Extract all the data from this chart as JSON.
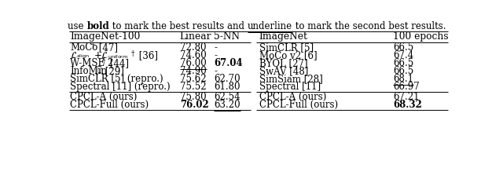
{
  "bg_color": "#ffffff",
  "text_color": "#000000",
  "line_color": "#000000",
  "font_size": 8.5,
  "caption_parts": [
    {
      "text": "use ",
      "bold": false,
      "underline": false
    },
    {
      "text": "bold",
      "bold": true,
      "underline": false
    },
    {
      "text": " to mark the best results and ",
      "bold": false,
      "underline": false
    },
    {
      "text": "underline",
      "bold": false,
      "underline": true
    },
    {
      "text": " to mark the second best results.",
      "bold": false,
      "underline": false
    }
  ],
  "left_header": [
    "ImageNet-100",
    "Linear",
    "5-NN"
  ],
  "right_header": [
    "ImageNet",
    "100 epochs"
  ],
  "left_rows": [
    {
      "method": "MoCo† [47]",
      "linear": "72.80",
      "nn": "-",
      "lb": false,
      "lu": false,
      "nb": false,
      "nu": false
    },
    {
      "method": "Lalign_Luniform",
      "linear": "74.60",
      "nn": "-",
      "lb": false,
      "lu": false,
      "nb": false,
      "nu": false
    },
    {
      "method": "W-MSE 2† [44]",
      "linear": "76.00",
      "nn": "67.04",
      "lb": false,
      "lu": true,
      "nb": true,
      "nu": false
    },
    {
      "method": "InfoMin★ [29]",
      "linear": "74.90",
      "nn": "-",
      "lb": false,
      "lu": false,
      "nb": false,
      "nu": false
    },
    {
      "method": "SimCLR [5] (repro.)",
      "linear": "75.62",
      "nn": "62.70",
      "lb": false,
      "lu": false,
      "nb": false,
      "nu": false
    },
    {
      "method": "Spectral [11] (repro.)",
      "linear": "75.52",
      "nn": "61.80",
      "lb": false,
      "lu": false,
      "nb": false,
      "nu": false
    }
  ],
  "left_ours": [
    {
      "method": "CPCL-A (ours)",
      "linear": "75.80",
      "nn": "62.54",
      "lb": false,
      "lu": false,
      "nb": false,
      "nu": false
    },
    {
      "method": "CPCL-Full (ours)",
      "linear": "76.02",
      "nn": "63.20",
      "lb": true,
      "lu": false,
      "nb": false,
      "nu": true
    }
  ],
  "right_rows": [
    {
      "method": "SimCLR [5]",
      "val": "66.5",
      "bold": false,
      "underline": false
    },
    {
      "method": "MoCo v2 [6]",
      "val": "67.4",
      "bold": false,
      "underline": false
    },
    {
      "method": "BYOL [27]",
      "val": "66.5",
      "bold": false,
      "underline": false
    },
    {
      "method": "SwAV [48]",
      "val": "66.5",
      "bold": false,
      "underline": false
    },
    {
      "method": "SimSiam [28]",
      "val": "68.1",
      "bold": false,
      "underline": true
    },
    {
      "method": "Spectral [11]",
      "val": "66.97",
      "bold": false,
      "underline": false
    }
  ],
  "right_ours": [
    {
      "method": "CPCL-A (ours)",
      "val": "67.21",
      "bold": false,
      "underline": false
    },
    {
      "method": "CPCL-Full (ours)",
      "val": "68.32",
      "bold": true,
      "underline": false
    }
  ]
}
